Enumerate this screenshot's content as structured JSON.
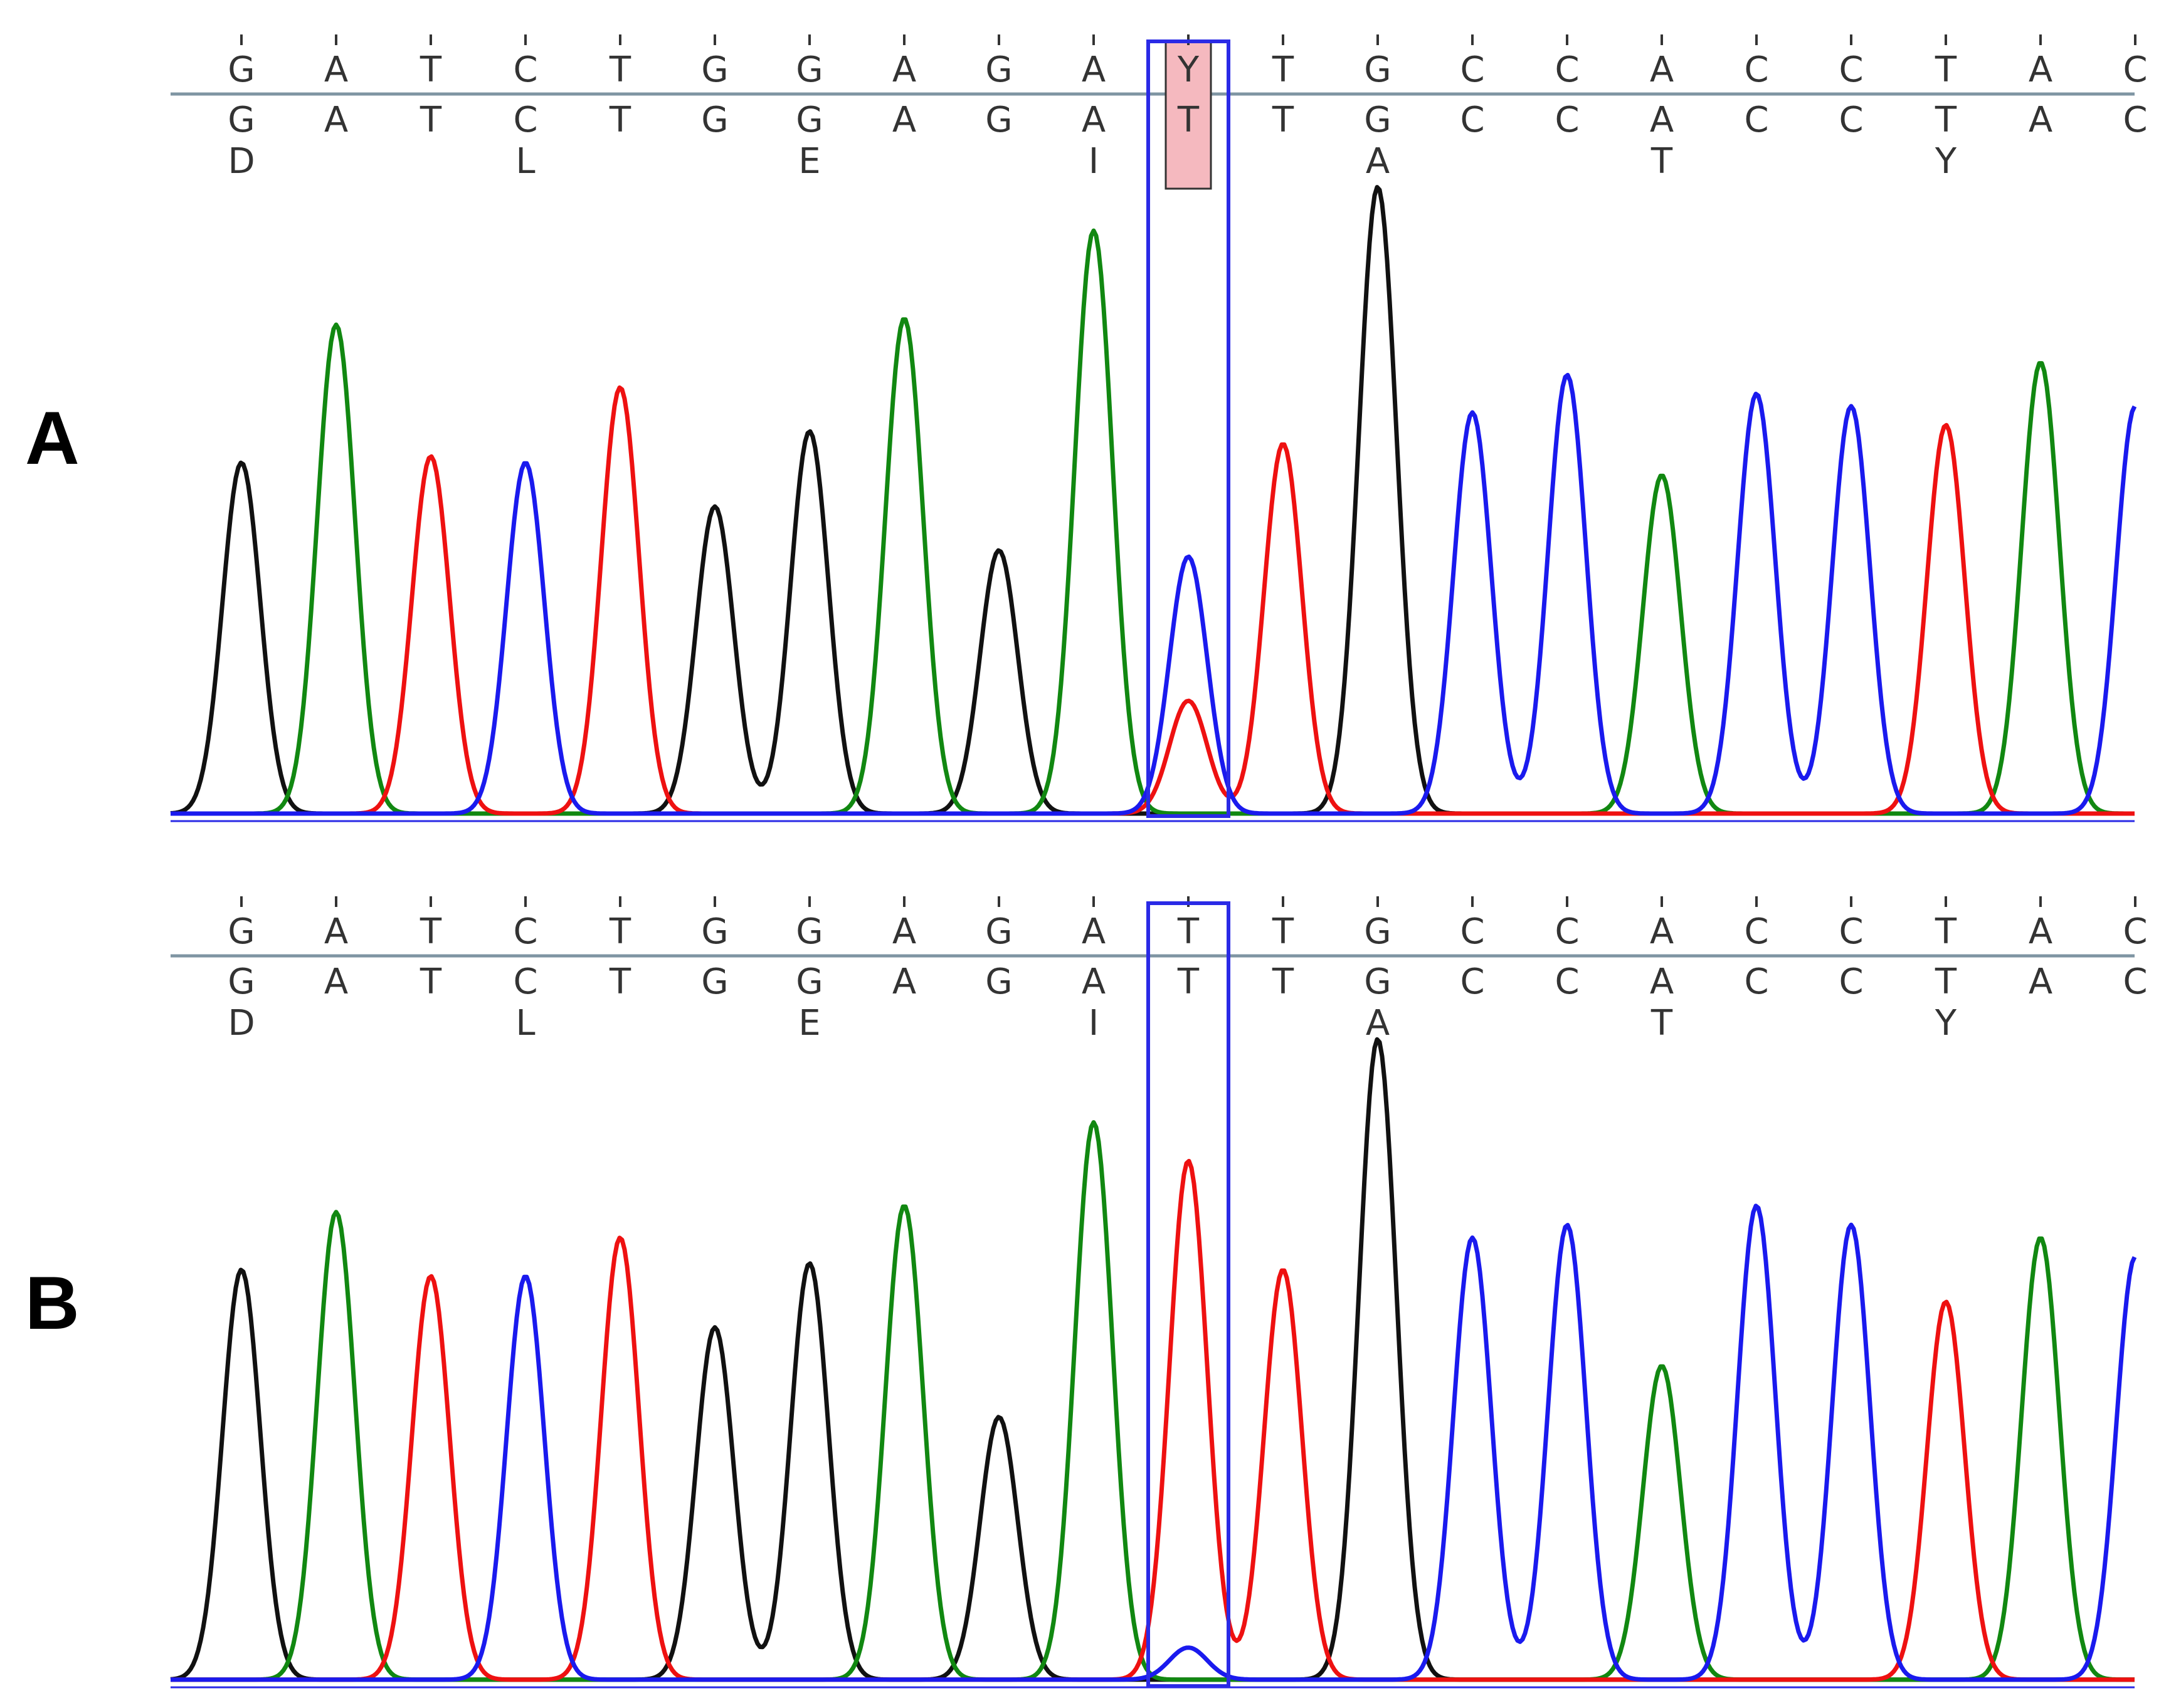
{
  "colors": {
    "A": "#118811",
    "C": "#1a1aee",
    "G": "#111111",
    "T": "#ee1111",
    "Y": "#1a1aee",
    "highlight_box": "#2a2ae6",
    "het_fill": "#f5b9bf",
    "axis": "#7f95a3"
  },
  "chart_data": [
    {
      "type": "line",
      "panel_label": "A",
      "top_sequence": [
        "G",
        "A",
        "T",
        "C",
        "T",
        "G",
        "G",
        "A",
        "G",
        "A",
        "Y",
        "T",
        "G",
        "C",
        "C",
        "A",
        "C",
        "C",
        "T",
        "A",
        "C"
      ],
      "reference_sequence": [
        "G",
        "A",
        "T",
        "C",
        "T",
        "G",
        "G",
        "A",
        "G",
        "A",
        "T",
        "T",
        "G",
        "C",
        "C",
        "A",
        "C",
        "C",
        "T",
        "A",
        "C"
      ],
      "translation": [
        {
          "index": 0,
          "aa": "D"
        },
        {
          "index": 3,
          "aa": "L"
        },
        {
          "index": 6,
          "aa": "E"
        },
        {
          "index": 9,
          "aa": "I"
        },
        {
          "index": 12,
          "aa": "A"
        },
        {
          "index": 15,
          "aa": "T"
        },
        {
          "index": 18,
          "aa": "Y"
        }
      ],
      "highlight_index": 10,
      "heterozygous": true,
      "peaks": [
        {
          "base": "G",
          "x": 0,
          "h": 0.56
        },
        {
          "base": "A",
          "x": 1,
          "h": 0.78
        },
        {
          "base": "T",
          "x": 2,
          "h": 0.57
        },
        {
          "base": "C",
          "x": 3,
          "h": 0.56
        },
        {
          "base": "T",
          "x": 4,
          "h": 0.68
        },
        {
          "base": "G",
          "x": 5,
          "h": 0.49
        },
        {
          "base": "G",
          "x": 6,
          "h": 0.61
        },
        {
          "base": "A",
          "x": 7,
          "h": 0.79
        },
        {
          "base": "G",
          "x": 8,
          "h": 0.42
        },
        {
          "base": "A",
          "x": 9,
          "h": 0.93
        },
        {
          "base": "C",
          "x": 10,
          "h": 0.41
        },
        {
          "base": "T",
          "x": 10,
          "h": 0.18
        },
        {
          "base": "T",
          "x": 11,
          "h": 0.59
        },
        {
          "base": "G",
          "x": 12,
          "h": 1.0
        },
        {
          "base": "C",
          "x": 13,
          "h": 0.64
        },
        {
          "base": "C",
          "x": 14,
          "h": 0.7
        },
        {
          "base": "A",
          "x": 15,
          "h": 0.54
        },
        {
          "base": "C",
          "x": 16,
          "h": 0.67
        },
        {
          "base": "C",
          "x": 17,
          "h": 0.65
        },
        {
          "base": "T",
          "x": 18,
          "h": 0.62
        },
        {
          "base": "A",
          "x": 19,
          "h": 0.72
        },
        {
          "base": "C",
          "x": 20,
          "h": 0.65
        }
      ]
    },
    {
      "type": "line",
      "panel_label": "B",
      "top_sequence": [
        "G",
        "A",
        "T",
        "C",
        "T",
        "G",
        "G",
        "A",
        "G",
        "A",
        "T",
        "T",
        "G",
        "C",
        "C",
        "A",
        "C",
        "C",
        "T",
        "A",
        "C"
      ],
      "reference_sequence": [
        "G",
        "A",
        "T",
        "C",
        "T",
        "G",
        "G",
        "A",
        "G",
        "A",
        "T",
        "T",
        "G",
        "C",
        "C",
        "A",
        "C",
        "C",
        "T",
        "A",
        "C"
      ],
      "translation": [
        {
          "index": 0,
          "aa": "D"
        },
        {
          "index": 3,
          "aa": "L"
        },
        {
          "index": 6,
          "aa": "E"
        },
        {
          "index": 9,
          "aa": "I"
        },
        {
          "index": 12,
          "aa": "A"
        },
        {
          "index": 15,
          "aa": "T"
        },
        {
          "index": 18,
          "aa": "Y"
        }
      ],
      "highlight_index": 10,
      "heterozygous": false,
      "peaks": [
        {
          "base": "G",
          "x": 0,
          "h": 0.64
        },
        {
          "base": "A",
          "x": 1,
          "h": 0.73
        },
        {
          "base": "T",
          "x": 2,
          "h": 0.63
        },
        {
          "base": "C",
          "x": 3,
          "h": 0.63
        },
        {
          "base": "T",
          "x": 4,
          "h": 0.69
        },
        {
          "base": "G",
          "x": 5,
          "h": 0.55
        },
        {
          "base": "G",
          "x": 6,
          "h": 0.65
        },
        {
          "base": "A",
          "x": 7,
          "h": 0.74
        },
        {
          "base": "G",
          "x": 8,
          "h": 0.41
        },
        {
          "base": "A",
          "x": 9,
          "h": 0.87
        },
        {
          "base": "T",
          "x": 10,
          "h": 0.81
        },
        {
          "base": "C",
          "x": 10,
          "h": 0.05
        },
        {
          "base": "T",
          "x": 11,
          "h": 0.64
        },
        {
          "base": "G",
          "x": 12,
          "h": 1.0
        },
        {
          "base": "C",
          "x": 13,
          "h": 0.69
        },
        {
          "base": "C",
          "x": 14,
          "h": 0.71
        },
        {
          "base": "A",
          "x": 15,
          "h": 0.49
        },
        {
          "base": "C",
          "x": 16,
          "h": 0.74
        },
        {
          "base": "C",
          "x": 17,
          "h": 0.71
        },
        {
          "base": "T",
          "x": 18,
          "h": 0.59
        },
        {
          "base": "A",
          "x": 19,
          "h": 0.69
        },
        {
          "base": "C",
          "x": 20,
          "h": 0.66
        }
      ]
    }
  ]
}
